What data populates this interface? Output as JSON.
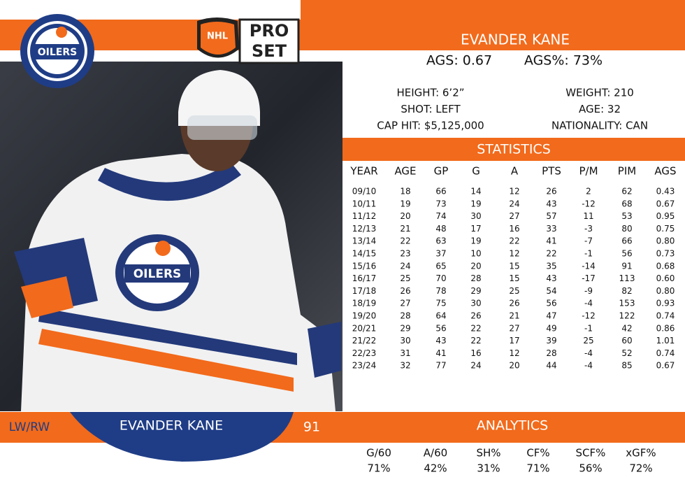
{
  "logo": {
    "team": "OILERS",
    "brand_top": "NHL",
    "brand_line1": "PRO",
    "brand_line2": "SET"
  },
  "player": {
    "name": "EVANDER KANE",
    "ags": "AGS: 0.67",
    "ags_pct": "AGS%: 73%",
    "bio": [
      [
        "HEIGHT: 6’2”",
        "WEIGHT: 210"
      ],
      [
        "SHOT: LEFT",
        "AGE: 32"
      ],
      [
        "CAP HIT: $5,125,000",
        "NATIONALITY: CAN"
      ]
    ]
  },
  "statistics": {
    "title": "STATISTICS",
    "columns": [
      "YEAR",
      "AGE",
      "GP",
      "G",
      "A",
      "PTS",
      "P/M",
      "PIM",
      "AGS"
    ],
    "rows": [
      [
        "09/10",
        "18",
        "66",
        "14",
        "12",
        "26",
        "2",
        "62",
        "0.43"
      ],
      [
        "10/11",
        "19",
        "73",
        "19",
        "24",
        "43",
        "-12",
        "68",
        "0.67"
      ],
      [
        "11/12",
        "20",
        "74",
        "30",
        "27",
        "57",
        "11",
        "53",
        "0.95"
      ],
      [
        "12/13",
        "21",
        "48",
        "17",
        "16",
        "33",
        "-3",
        "80",
        "0.75"
      ],
      [
        "13/14",
        "22",
        "63",
        "19",
        "22",
        "41",
        "-7",
        "66",
        "0.80"
      ],
      [
        "14/15",
        "23",
        "37",
        "10",
        "12",
        "22",
        "-1",
        "56",
        "0.73"
      ],
      [
        "15/16",
        "24",
        "65",
        "20",
        "15",
        "35",
        "-14",
        "91",
        "0.68"
      ],
      [
        "16/17",
        "25",
        "70",
        "28",
        "15",
        "43",
        "-17",
        "113",
        "0.60"
      ],
      [
        "17/18",
        "26",
        "78",
        "29",
        "25",
        "54",
        "-9",
        "82",
        "0.80"
      ],
      [
        "18/19",
        "27",
        "75",
        "30",
        "26",
        "56",
        "-4",
        "153",
        "0.93"
      ],
      [
        "19/20",
        "28",
        "64",
        "26",
        "21",
        "47",
        "-12",
        "122",
        "0.74"
      ],
      [
        "20/21",
        "29",
        "56",
        "22",
        "27",
        "49",
        "-1",
        "42",
        "0.86"
      ],
      [
        "21/22",
        "30",
        "43",
        "22",
        "17",
        "39",
        "25",
        "60",
        "1.01"
      ],
      [
        "22/23",
        "31",
        "41",
        "16",
        "12",
        "28",
        "-4",
        "52",
        "0.74"
      ],
      [
        "23/24",
        "32",
        "77",
        "24",
        "20",
        "44",
        "-4",
        "85",
        "0.67"
      ]
    ]
  },
  "footer": {
    "position": "LW/RW",
    "name": "EVANDER KANE",
    "number": "91"
  },
  "analytics": {
    "title": "ANALYTICS",
    "columns": [
      "G/60",
      "A/60",
      "SH%",
      "CF%",
      "SCF%",
      "xGF%"
    ],
    "values": [
      "71%",
      "42%",
      "31%",
      "71%",
      "56%",
      "72%"
    ]
  }
}
